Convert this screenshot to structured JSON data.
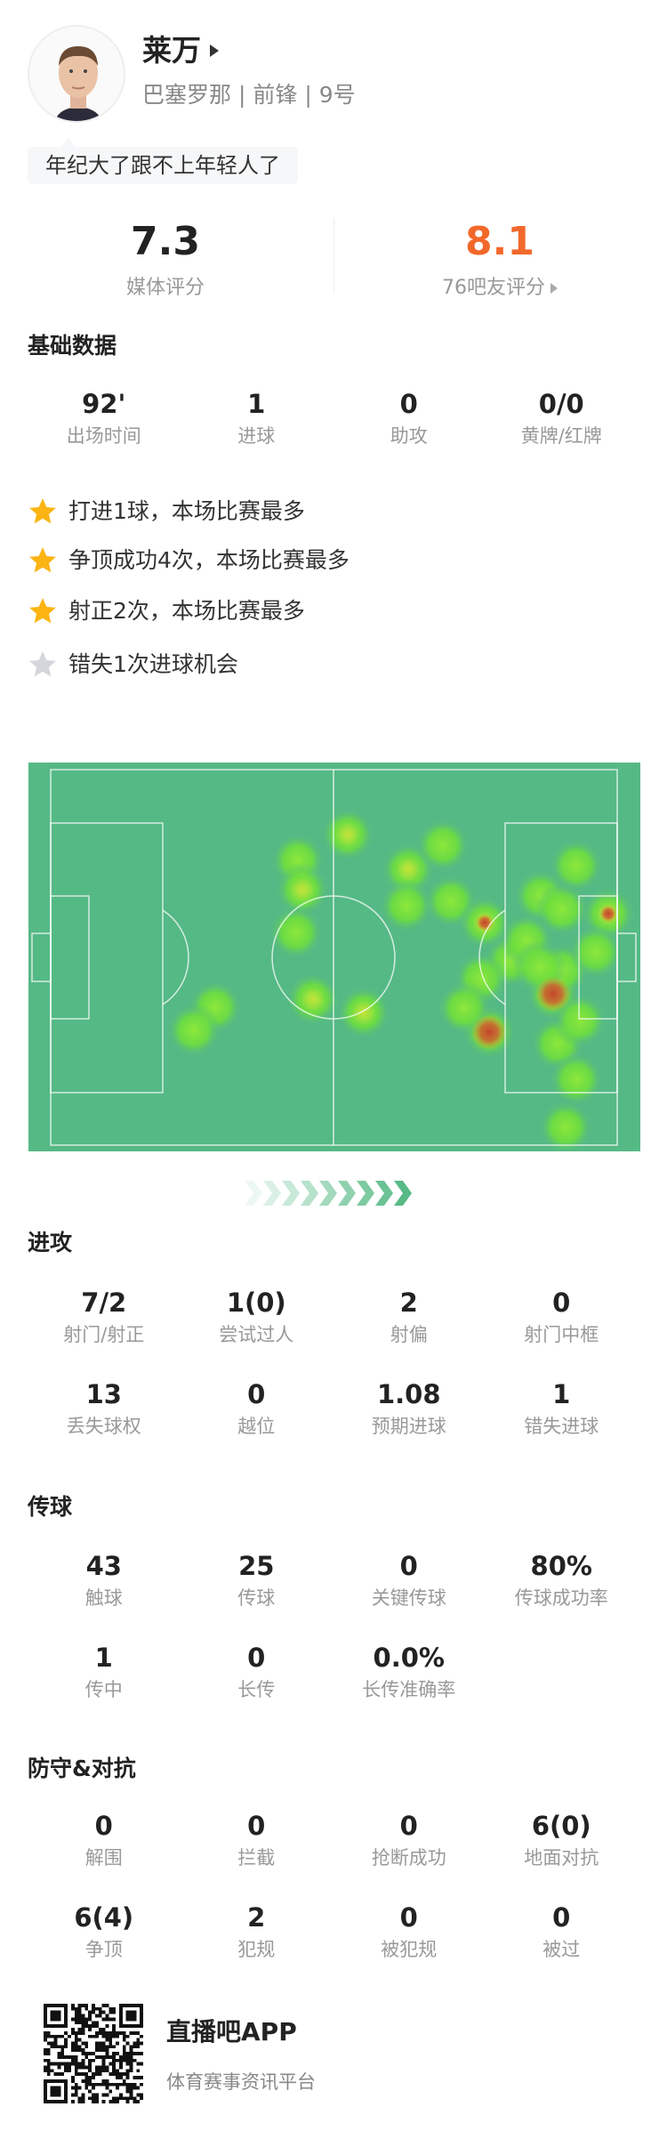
{
  "player": {
    "name": "莱万",
    "team": "巴塞罗那",
    "position": "前锋",
    "number": "9号",
    "separator": "|",
    "comment": "年纪大了跟不上年轻人了"
  },
  "ratings": {
    "media": {
      "value": "7.3",
      "label": "媒体评分"
    },
    "fans": {
      "value": "8.1",
      "label": "76吧友评分",
      "color": "#f2682a"
    }
  },
  "basic": {
    "title": "基础数据",
    "stats": [
      {
        "value": "92'",
        "label": "出场时间"
      },
      {
        "value": "1",
        "label": "进球"
      },
      {
        "value": "0",
        "label": "助攻"
      },
      {
        "value": "0/0",
        "label": "黄牌/红牌"
      }
    ]
  },
  "highlights": [
    {
      "text": "打进1球，本场比赛最多",
      "icon": "star-gold"
    },
    {
      "text": "争顶成功4次，本场比赛最多",
      "icon": "star-gold"
    },
    {
      "text": "射正2次，本场比赛最多",
      "icon": "star-gold"
    },
    {
      "text": "错失1次进球机会",
      "icon": "star-gray"
    }
  ],
  "heatmap": {
    "pitch_color": "#55b985",
    "direction": "attacking-right"
  },
  "attack": {
    "title": "进攻",
    "stats": [
      {
        "value": "7/2",
        "label": "射门/射正"
      },
      {
        "value": "1(0)",
        "label": "尝试过人"
      },
      {
        "value": "2",
        "label": "射偏"
      },
      {
        "value": "0",
        "label": "射门中框"
      },
      {
        "value": "13",
        "label": "丢失球权"
      },
      {
        "value": "0",
        "label": "越位"
      },
      {
        "value": "1.08",
        "label": "预期进球"
      },
      {
        "value": "1",
        "label": "错失进球"
      }
    ]
  },
  "passing": {
    "title": "传球",
    "stats": [
      {
        "value": "43",
        "label": "触球"
      },
      {
        "value": "25",
        "label": "传球"
      },
      {
        "value": "0",
        "label": "关键传球"
      },
      {
        "value": "80%",
        "label": "传球成功率"
      },
      {
        "value": "1",
        "label": "传中"
      },
      {
        "value": "0",
        "label": "长传"
      },
      {
        "value": "0.0%",
        "label": "长传准确率"
      }
    ]
  },
  "defense": {
    "title": "防守&对抗",
    "stats": [
      {
        "value": "0",
        "label": "解围"
      },
      {
        "value": "0",
        "label": "拦截"
      },
      {
        "value": "0",
        "label": "抢断成功"
      },
      {
        "value": "6(0)",
        "label": "地面对抗"
      },
      {
        "value": "6(4)",
        "label": "争顶"
      },
      {
        "value": "2",
        "label": "犯规"
      },
      {
        "value": "0",
        "label": "被犯规"
      },
      {
        "value": "0",
        "label": "被过"
      }
    ]
  },
  "footer": {
    "app_name": "直播吧APP",
    "slogan": "体育赛事资讯平台"
  }
}
